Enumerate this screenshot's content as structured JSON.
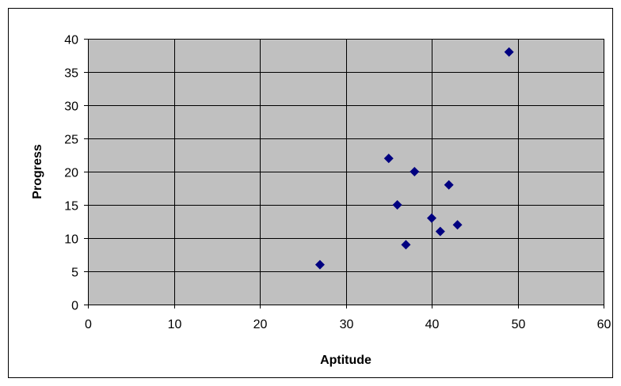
{
  "chart_data": {
    "type": "scatter",
    "title": "",
    "xlabel": "Aptitude",
    "ylabel": "Progress",
    "xlim": [
      0,
      60
    ],
    "ylim": [
      0,
      40
    ],
    "x_ticks": [
      0,
      10,
      20,
      30,
      40,
      50,
      60
    ],
    "y_ticks": [
      0,
      5,
      10,
      15,
      20,
      25,
      30,
      35,
      40
    ],
    "grid": true,
    "legend": "none",
    "colors": {
      "plot_background": "#c0c0c0",
      "gridline": "#000000",
      "marker": "#000080",
      "border": "#000000"
    },
    "marker_shape": "diamond",
    "points": [
      {
        "x": 27,
        "y": 6
      },
      {
        "x": 35,
        "y": 22
      },
      {
        "x": 36,
        "y": 15
      },
      {
        "x": 37,
        "y": 9
      },
      {
        "x": 38,
        "y": 20
      },
      {
        "x": 40,
        "y": 13
      },
      {
        "x": 41,
        "y": 11
      },
      {
        "x": 42,
        "y": 18
      },
      {
        "x": 43,
        "y": 12
      },
      {
        "x": 49,
        "y": 38
      }
    ]
  }
}
